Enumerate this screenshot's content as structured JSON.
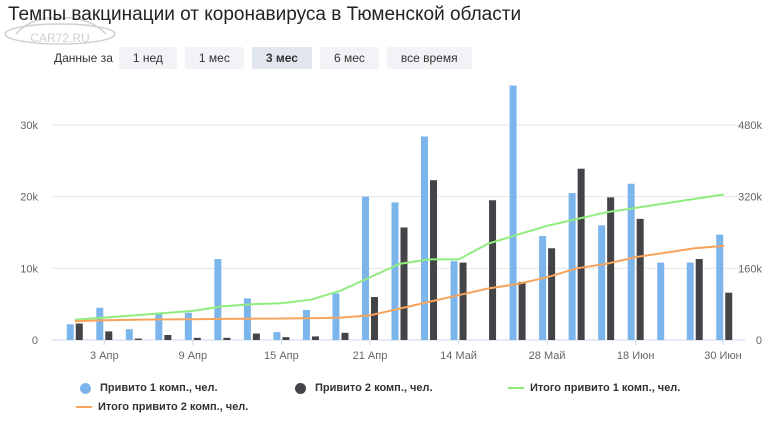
{
  "title": "Темпы вакцинации от коронавируса в Тюменской области",
  "watermark": "CAR72.RU",
  "period": {
    "label": "Данные за",
    "options": [
      "1 нед",
      "1 мес",
      "3 мес",
      "6 мес",
      "все время"
    ],
    "selected": "3 мес"
  },
  "colors": {
    "dose1_bar": "#7cb5ec",
    "dose2_bar": "#434348",
    "total1_line": "#90ed7d",
    "total2_line": "#f7a35c"
  },
  "chart_data": {
    "type": "bar",
    "y_left": {
      "ylim": [
        0,
        36000
      ],
      "ticks": [
        "0",
        "10k",
        "20k",
        "30k"
      ]
    },
    "y_right": {
      "ylim": [
        0,
        576000
      ],
      "ticks": [
        "0",
        "160k",
        "320k",
        "480k"
      ]
    },
    "x_tick_labels": [
      "3 Апр",
      "9 Апр",
      "15 Апр",
      "21 Апр",
      "14 Май",
      "28 Май",
      "18 Июн",
      "30 Июн"
    ],
    "series": [
      {
        "name": "Привито 1 комп., чел.",
        "values": [
          2200,
          4500,
          1500,
          3800,
          3800,
          11300,
          5800,
          1100,
          4200,
          6500,
          20000,
          19200,
          28400,
          11000,
          0,
          35500,
          14500,
          20500,
          16000,
          21800,
          10800,
          10800,
          14700
        ]
      },
      {
        "name": "Привито 2 комп., чел.",
        "values": [
          2300,
          1200,
          200,
          700,
          300,
          300,
          900,
          400,
          500,
          1000,
          6000,
          15700,
          22300,
          10800,
          19500,
          8100,
          12800,
          23900,
          19900,
          16900,
          0,
          11300,
          6600
        ]
      },
      {
        "name": "Итого привито 1 комп., чел.",
        "values": [
          45000,
          50000,
          55000,
          60000,
          65000,
          75000,
          80000,
          82000,
          90000,
          110000,
          140000,
          170000,
          180000,
          180000,
          215000,
          235000,
          255000,
          270000,
          285000,
          295000,
          305000,
          315000,
          325000
        ]
      },
      {
        "name": "Итого привито 2 комп., чел.",
        "values": [
          42000,
          44000,
          45000,
          46000,
          46500,
          47000,
          47500,
          48000,
          48500,
          50000,
          55000,
          70000,
          85000,
          100000,
          115000,
          125000,
          140000,
          160000,
          170000,
          185000,
          195000,
          205000,
          210000
        ]
      }
    ],
    "legend": "bottom",
    "grid": true
  }
}
